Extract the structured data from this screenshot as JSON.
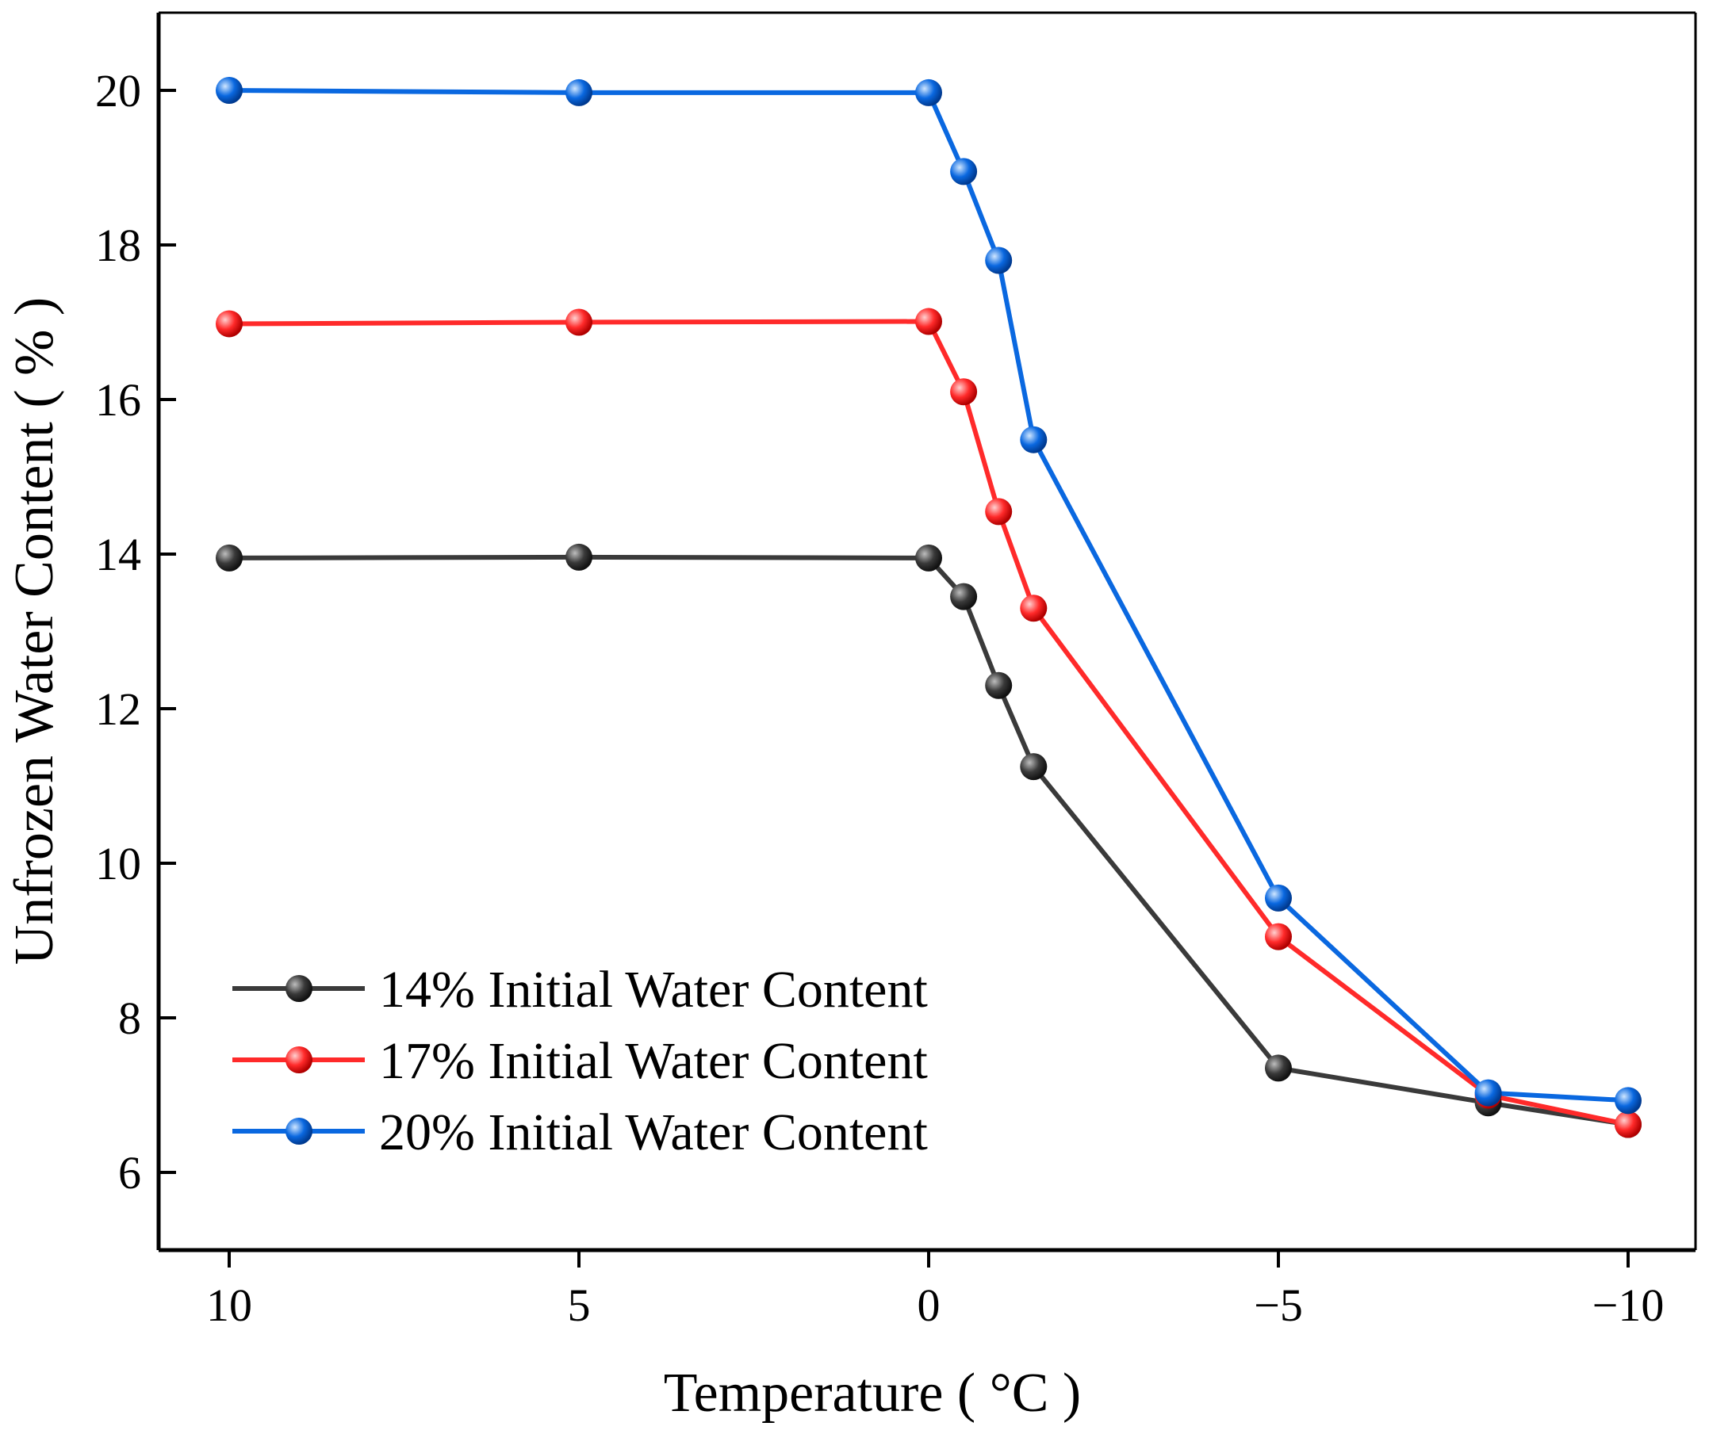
{
  "chart_data": {
    "type": "line",
    "xlabel": "Temperature ( °C )",
    "ylabel": "Unfrozen Water Content ( % )",
    "xlim": [
      11,
      -11
    ],
    "ylim": [
      5,
      21
    ],
    "x_reversed": true,
    "xticks": [
      10,
      5,
      0,
      -5,
      -10
    ],
    "xtick_labels": [
      "10",
      "5",
      "0",
      "−5",
      "−10"
    ],
    "yticks": [
      6,
      8,
      10,
      12,
      14,
      16,
      18,
      20
    ],
    "ytick_labels": [
      "6",
      "8",
      "10",
      "12",
      "14",
      "16",
      "18",
      "20"
    ],
    "grid": false,
    "legend_position": "bottom-left",
    "x": [
      10,
      5,
      0,
      -0.5,
      -1,
      -1.5,
      -5,
      -8,
      -10
    ],
    "series": [
      {
        "name": "14% Initial Water Content",
        "color": "#3a3a3a",
        "values": [
          13.95,
          13.96,
          13.95,
          13.45,
          12.3,
          11.25,
          7.35,
          6.9,
          6.62
        ]
      },
      {
        "name": "17% Initial Water Content",
        "color": "#ff2a2a",
        "values": [
          16.98,
          17.0,
          17.01,
          16.1,
          14.55,
          13.3,
          9.05,
          7.0,
          6.62
        ]
      },
      {
        "name": "20% Initial Water Content",
        "color": "#0a68e0",
        "values": [
          20.0,
          19.97,
          19.97,
          18.95,
          17.8,
          15.48,
          9.55,
          7.03,
          6.93
        ]
      }
    ]
  }
}
